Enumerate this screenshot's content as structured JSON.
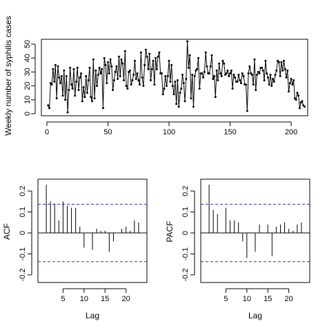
{
  "chart_data": [
    {
      "type": "line",
      "ylabel": "Weekly number of syphilis cases",
      "xlim": [
        0,
        209
      ],
      "ylim": [
        0,
        52
      ],
      "xticks": [
        0,
        50,
        100,
        150,
        200
      ],
      "yticks": [
        0,
        10,
        20,
        30,
        40,
        50
      ],
      "series": [
        {
          "values": [
            6,
            4,
            22,
            21,
            32,
            23,
            35,
            11,
            34,
            26,
            22,
            27,
            13,
            31,
            10,
            27,
            1,
            17,
            33,
            21,
            18,
            32,
            13,
            23,
            33,
            17,
            26,
            29,
            9,
            19,
            12,
            27,
            15,
            24,
            33,
            12,
            9,
            39,
            11,
            31,
            20,
            28,
            33,
            29,
            32,
            4,
            40,
            35,
            22,
            37,
            29,
            39,
            34,
            17,
            24,
            30,
            34,
            25,
            41,
            27,
            39,
            36,
            24,
            45,
            20,
            18,
            30,
            31,
            21,
            24,
            28,
            38,
            25,
            29,
            24,
            21,
            44,
            26,
            20,
            35,
            46,
            41,
            32,
            43,
            24,
            32,
            38,
            21,
            40,
            32,
            41,
            44,
            29,
            29,
            14,
            18,
            27,
            20,
            27,
            38,
            23,
            35,
            20,
            14,
            23,
            7,
            24,
            5,
            15,
            18,
            28,
            22,
            9,
            25,
            52,
            33,
            42,
            11,
            28,
            5,
            27,
            31,
            32,
            40,
            18,
            29,
            29,
            26,
            30,
            44,
            34,
            29,
            29,
            34,
            42,
            25,
            27,
            12,
            31,
            24,
            36,
            29,
            27,
            38,
            36,
            28,
            29,
            31,
            27,
            29,
            31,
            18,
            28,
            26,
            23,
            23,
            28,
            24,
            22,
            29,
            27,
            21,
            21,
            2,
            29,
            34,
            29,
            28,
            21,
            39,
            17,
            28,
            30,
            29,
            33,
            33,
            31,
            24,
            38,
            29,
            26,
            21,
            28,
            20,
            25,
            23,
            28,
            31,
            38,
            37,
            27,
            37,
            31,
            38,
            32,
            26,
            31,
            16,
            22,
            25,
            21,
            24,
            11,
            10,
            15,
            13,
            4,
            8,
            9,
            6,
            5
          ]
        }
      ]
    },
    {
      "type": "bar",
      "ylabel": "ACF",
      "xlabel": "Lag",
      "xlim": [
        0,
        24
      ],
      "ylim": [
        -0.22,
        0.24
      ],
      "xticks": [
        5,
        10,
        15,
        20
      ],
      "yticks": [
        -0.2,
        -0.1,
        0.0,
        0.1,
        0.2
      ],
      "ci": 0.137,
      "lags": [
        1,
        2,
        3,
        4,
        5,
        6,
        7,
        8,
        9,
        10,
        11,
        12,
        13,
        14,
        15,
        16,
        17,
        18,
        19,
        20,
        21,
        22,
        23
      ],
      "values": [
        0.23,
        0.15,
        0.14,
        0.06,
        0.15,
        0.13,
        0.12,
        0.12,
        0.03,
        -0.07,
        0.0,
        -0.08,
        0.02,
        0.01,
        0.01,
        -0.09,
        -0.04,
        0.0,
        0.02,
        0.03,
        0.01,
        0.06,
        0.05
      ]
    },
    {
      "type": "bar",
      "ylabel": "PACF",
      "xlabel": "Lag",
      "xlim": [
        0,
        24
      ],
      "ylim": [
        -0.22,
        0.24
      ],
      "xticks": [
        5,
        10,
        15,
        20
      ],
      "yticks": [
        -0.2,
        -0.1,
        0.0,
        0.1,
        0.2
      ],
      "ci": 0.137,
      "lags": [
        1,
        2,
        3,
        4,
        5,
        6,
        7,
        8,
        9,
        10,
        11,
        12,
        13,
        14,
        15,
        16,
        17,
        18,
        19,
        20,
        21,
        22,
        23
      ],
      "values": [
        0.23,
        0.11,
        0.09,
        0.0,
        0.12,
        0.06,
        0.06,
        0.05,
        -0.04,
        -0.12,
        0.0,
        -0.09,
        0.04,
        0.0,
        0.04,
        -0.11,
        0.03,
        0.04,
        0.05,
        0.02,
        0.01,
        0.04,
        0.05
      ]
    }
  ]
}
